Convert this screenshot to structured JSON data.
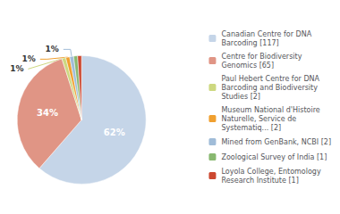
{
  "chart_data": {
    "type": "pie",
    "categories": [
      "Canadian Centre for DNA\nBarcoding [117]",
      "Centre for Biodiversity\nGenomics [65]",
      "Paul Hebert Centre for DNA\nBarcoding and Biodiversity\nStudies [2]",
      "Museum National d'Histoire\nNaturelle, Service de\nSystematiq... [2]",
      "Mined from GenBank, NCBI [2]",
      "Zoological Survey of India [1]",
      "Loyola College, Entomology\nResearch Institute [1]"
    ],
    "values": [
      62,
      34,
      1,
      1,
      1,
      1,
      1
    ],
    "value_labels": [
      "62%",
      "34%",
      "1%",
      "1%",
      "1%",
      null,
      null
    ],
    "colors": [
      "#c5d5e8",
      "#e09585",
      "#cdd880",
      "#f0a030",
      "#a0bcd8",
      "#88b870",
      "#cc4830"
    ],
    "data_labels": true,
    "legend": "right"
  }
}
